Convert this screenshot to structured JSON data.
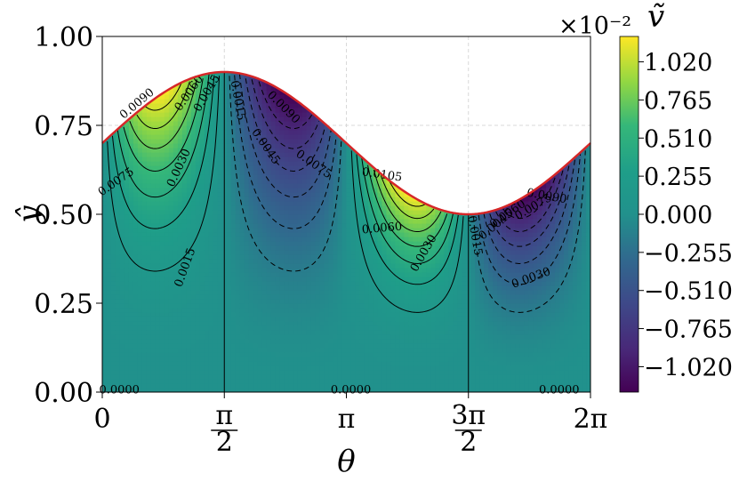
{
  "chart_data": {
    "type": "heatmap",
    "title": "",
    "xlabel": "θ",
    "ylabel": "ŷ",
    "xlim": [
      0,
      6.2832
    ],
    "ylim": [
      0,
      1.0
    ],
    "x_ticks": [
      {
        "value": 0,
        "label": "0"
      },
      {
        "value": 1.5708,
        "label": "π/2"
      },
      {
        "value": 3.1416,
        "label": "π"
      },
      {
        "value": 4.7124,
        "label": "3π/2"
      },
      {
        "value": 6.2832,
        "label": "2π"
      }
    ],
    "y_ticks": [
      {
        "value": 0.0,
        "label": "0.00"
      },
      {
        "value": 0.25,
        "label": "0.25"
      },
      {
        "value": 0.5,
        "label": "0.50"
      },
      {
        "value": 0.75,
        "label": "0.75"
      },
      {
        "value": 1.0,
        "label": "1.00"
      }
    ],
    "grid": true,
    "boundary": {
      "description": "upper wall",
      "color": "#d62728",
      "points": [
        [
          0,
          0.7
        ],
        [
          1.5708,
          0.9
        ],
        [
          3.1416,
          0.7
        ],
        [
          4.7124,
          0.5
        ],
        [
          6.2832,
          0.7
        ]
      ]
    },
    "colorbar": {
      "label": "ṽ",
      "multiplier": "×10⁻²",
      "colormap": "viridis",
      "range": [
        -1.19,
        1.19
      ],
      "ticks": [
        "1.020",
        "0.765",
        "0.510",
        "0.255",
        "0.000",
        "−0.255",
        "−0.510",
        "−0.765",
        "−1.020"
      ],
      "tick_values": [
        1.02,
        0.765,
        0.51,
        0.255,
        0.0,
        -0.255,
        -0.51,
        -0.765,
        -1.02
      ]
    },
    "contour_levels": [
      -0.009,
      -0.0075,
      -0.006,
      -0.0045,
      -0.003,
      -0.0015,
      0.0,
      0.0015,
      0.003,
      0.0045,
      0.006,
      0.0075,
      0.009,
      0.0105
    ],
    "contour_labels": [
      {
        "text": "0.0090",
        "x": 0.45,
        "y": 0.81,
        "angle": -40
      },
      {
        "text": "0.0060",
        "x": 1.12,
        "y": 0.84,
        "angle": -55
      },
      {
        "text": "0.0045",
        "x": 1.35,
        "y": 0.84,
        "angle": -60
      },
      {
        "text": "0.0075",
        "x": 0.18,
        "y": 0.59,
        "angle": -35
      },
      {
        "text": "0.0030",
        "x": 0.99,
        "y": 0.63,
        "angle": -65
      },
      {
        "text": "0.0015",
        "x": 1.07,
        "y": 0.35,
        "angle": -70
      },
      {
        "text": "0.0015",
        "x": 1.74,
        "y": 0.82,
        "angle": 80
      },
      {
        "text": "0.0090",
        "x": 2.33,
        "y": 0.8,
        "angle": 45
      },
      {
        "text": "0.0045",
        "x": 2.1,
        "y": 0.69,
        "angle": 55
      },
      {
        "text": "0.0075",
        "x": 2.72,
        "y": 0.64,
        "angle": 35
      },
      {
        "text": "0.0105",
        "x": 3.6,
        "y": 0.61,
        "angle": 8
      },
      {
        "text": "0.0060",
        "x": 3.6,
        "y": 0.46,
        "angle": -5
      },
      {
        "text": "0.0030",
        "x": 4.14,
        "y": 0.39,
        "angle": -60
      },
      {
        "text": "0.0015",
        "x": 4.79,
        "y": 0.44,
        "angle": 80
      },
      {
        "text": "0.0090",
        "x": 5.72,
        "y": 0.55,
        "angle": 10
      },
      {
        "text": "0.0075",
        "x": 5.55,
        "y": 0.52,
        "angle": -30
      },
      {
        "text": "0.0060",
        "x": 5.22,
        "y": 0.5,
        "angle": -35
      },
      {
        "text": "0.0045",
        "x": 5.07,
        "y": 0.47,
        "angle": -40
      },
      {
        "text": "0.0030",
        "x": 5.52,
        "y": 0.32,
        "angle": -20
      },
      {
        "text": "0.0000",
        "x": 0.22,
        "y": 0.005,
        "angle": 0
      },
      {
        "text": "0.0000",
        "x": 3.2,
        "y": 0.005,
        "angle": 0
      },
      {
        "text": "0.0000",
        "x": 5.88,
        "y": 0.005,
        "angle": 0
      }
    ]
  }
}
